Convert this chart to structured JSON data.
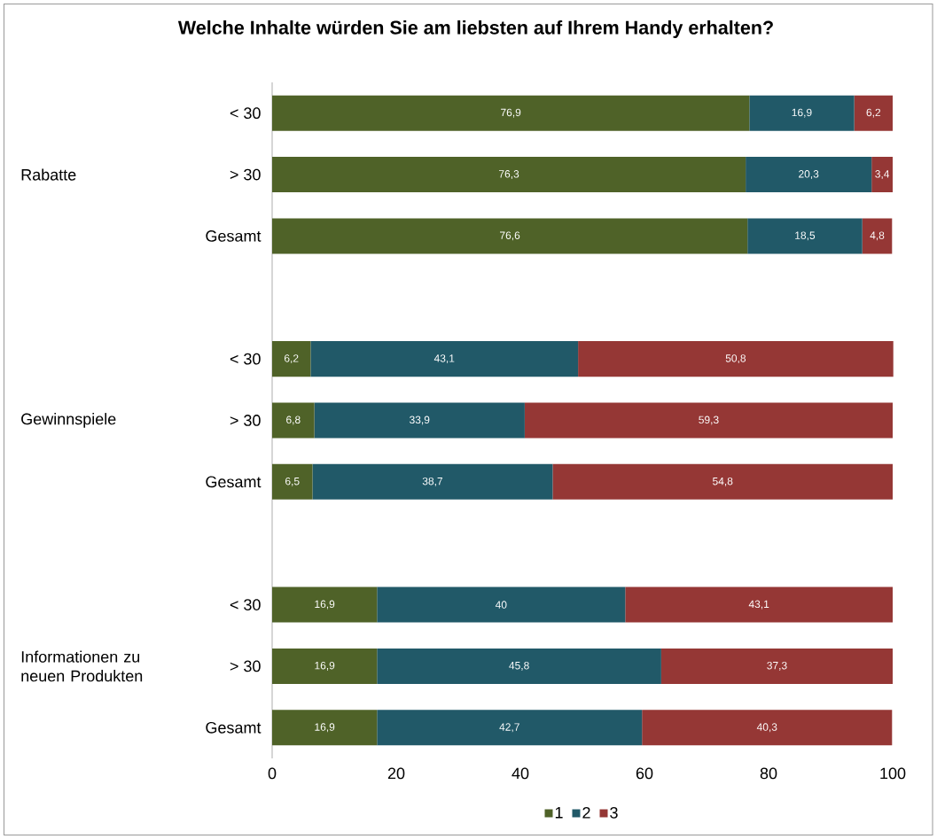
{
  "chart_data": {
    "type": "bar",
    "orientation": "horizontal",
    "stacked": true,
    "title": "Welche Inhalte würden Sie am liebsten auf Ihrem Handy erhalten?",
    "categories": [
      "< 30",
      "> 30",
      "Gesamt",
      null,
      "< 30",
      "> 30",
      "Gesamt",
      null,
      "< 30",
      "> 30",
      "Gesamt"
    ],
    "series": [
      {
        "name": "1",
        "color": "#4f6228",
        "values": [
          76.9,
          76.3,
          76.6,
          null,
          6.2,
          6.8,
          6.5,
          null,
          16.9,
          16.9,
          16.9
        ],
        "value_labels": [
          "76,9",
          "76,3",
          "76,6",
          null,
          "6,2",
          "6,8",
          "6,5",
          null,
          "16,9",
          "16,9",
          "16,9"
        ]
      },
      {
        "name": "2",
        "color": "#215968",
        "values": [
          16.9,
          20.3,
          18.5,
          null,
          43.1,
          33.9,
          38.7,
          null,
          40,
          45.8,
          42.7
        ],
        "value_labels": [
          "16,9",
          "20,3",
          "18,5",
          null,
          "43,1",
          "33,9",
          "38,7",
          null,
          "40",
          "45,8",
          "42,7"
        ]
      },
      {
        "name": "3",
        "color": "#953735",
        "values": [
          6.2,
          3.4,
          4.8,
          null,
          50.8,
          59.3,
          54.8,
          null,
          43.1,
          37.3,
          40.3
        ],
        "value_labels": [
          "6,2",
          "3,4",
          "4,8",
          null,
          "50,8",
          "59,3",
          "54,8",
          null,
          "43,1",
          "37,3",
          "40,3"
        ]
      }
    ],
    "xlim": [
      0,
      100
    ],
    "xticks": [
      0,
      20,
      40,
      60,
      80,
      100
    ],
    "legend": "bottom",
    "annotations": [
      "Rabatte",
      "Gewinnspiele",
      "Informationen zu neuen Produkten"
    ]
  }
}
